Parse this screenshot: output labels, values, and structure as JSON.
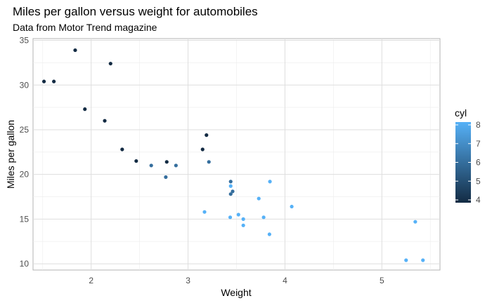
{
  "chart_data": {
    "type": "scatter",
    "title": "Miles per gallon versus weight for automobiles",
    "subtitle": "Data from Motor Trend magazine",
    "xlabel": "Weight",
    "ylabel": "Miles per gallon",
    "xlim": [
      1.4,
      5.6
    ],
    "ylim": [
      9.3,
      35.2
    ],
    "x_ticks": [
      2,
      3,
      4,
      5
    ],
    "y_ticks": [
      10,
      15,
      20,
      25,
      30,
      35
    ],
    "grid": true,
    "legend": {
      "title": "cyl",
      "placement": "right",
      "ticks": [
        4,
        5,
        6,
        7,
        8
      ],
      "low_color": "#132B43",
      "high_color": "#56B1F7"
    },
    "points": [
      {
        "x": 2.62,
        "y": 21.0,
        "cyl": 6
      },
      {
        "x": 2.875,
        "y": 21.0,
        "cyl": 6
      },
      {
        "x": 2.32,
        "y": 22.8,
        "cyl": 4
      },
      {
        "x": 3.215,
        "y": 21.4,
        "cyl": 6
      },
      {
        "x": 3.44,
        "y": 18.7,
        "cyl": 8
      },
      {
        "x": 3.46,
        "y": 18.1,
        "cyl": 6
      },
      {
        "x": 3.57,
        "y": 14.3,
        "cyl": 8
      },
      {
        "x": 3.19,
        "y": 24.4,
        "cyl": 4
      },
      {
        "x": 3.15,
        "y": 22.8,
        "cyl": 4
      },
      {
        "x": 3.44,
        "y": 19.2,
        "cyl": 6
      },
      {
        "x": 3.44,
        "y": 17.8,
        "cyl": 6
      },
      {
        "x": 4.07,
        "y": 16.4,
        "cyl": 8
      },
      {
        "x": 3.73,
        "y": 17.3,
        "cyl": 8
      },
      {
        "x": 3.78,
        "y": 15.2,
        "cyl": 8
      },
      {
        "x": 5.25,
        "y": 10.4,
        "cyl": 8
      },
      {
        "x": 5.424,
        "y": 10.4,
        "cyl": 8
      },
      {
        "x": 5.345,
        "y": 14.7,
        "cyl": 8
      },
      {
        "x": 2.2,
        "y": 32.4,
        "cyl": 4
      },
      {
        "x": 1.615,
        "y": 30.4,
        "cyl": 4
      },
      {
        "x": 1.835,
        "y": 33.9,
        "cyl": 4
      },
      {
        "x": 2.465,
        "y": 21.5,
        "cyl": 4
      },
      {
        "x": 3.52,
        "y": 15.5,
        "cyl": 8
      },
      {
        "x": 3.435,
        "y": 15.2,
        "cyl": 8
      },
      {
        "x": 3.84,
        "y": 13.3,
        "cyl": 8
      },
      {
        "x": 3.845,
        "y": 19.2,
        "cyl": 8
      },
      {
        "x": 1.935,
        "y": 27.3,
        "cyl": 4
      },
      {
        "x": 2.14,
        "y": 26.0,
        "cyl": 4
      },
      {
        "x": 1.513,
        "y": 30.4,
        "cyl": 4
      },
      {
        "x": 3.17,
        "y": 15.8,
        "cyl": 8
      },
      {
        "x": 2.77,
        "y": 19.7,
        "cyl": 6
      },
      {
        "x": 3.57,
        "y": 15.0,
        "cyl": 8
      },
      {
        "x": 2.78,
        "y": 21.4,
        "cyl": 4
      }
    ]
  }
}
